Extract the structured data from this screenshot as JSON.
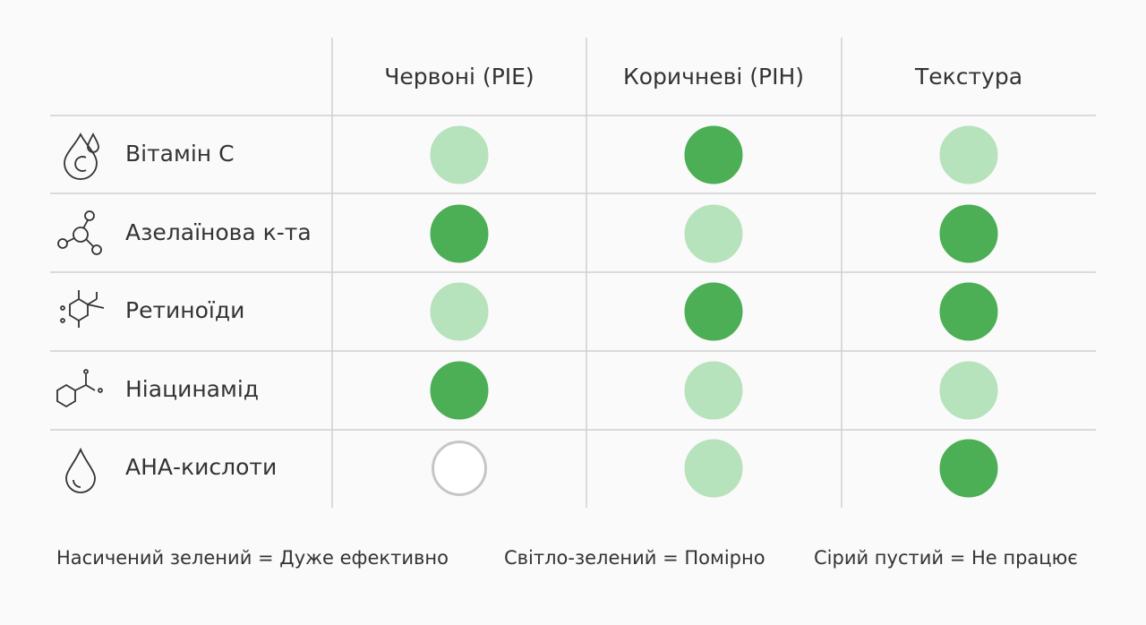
{
  "table": {
    "columns": [
      "Червоні (PIE)",
      "Коричневі (PIH)",
      "Текстура"
    ],
    "rows": [
      {
        "label": "Вітамін С",
        "cells": [
          1,
          0,
          1
        ]
      },
      {
        "label": "Азелаїнова к-та",
        "cells": [
          0,
          1,
          0
        ]
      },
      {
        "label": "Ретиноїди",
        "cells": [
          1,
          0,
          0
        ]
      },
      {
        "label": "Ніацинамід",
        "cells": [
          0,
          1,
          1
        ]
      },
      {
        "label": "АНА-кислоти",
        "cells": [
          2,
          1,
          0
        ]
      }
    ]
  },
  "legend": [
    {
      "text": "Насичений зелений = Дуже ефективно",
      "fill": "#4caf55",
      "stroke": "#4caf55"
    },
    {
      "text": "Світло-зелений = Помірно",
      "fill": "#b6e2bc",
      "stroke": "#b6e2bc"
    },
    {
      "text": "Сірий пустий = Не працює",
      "fill": "#ffffff",
      "stroke": "#c6c6c6"
    }
  ]
}
